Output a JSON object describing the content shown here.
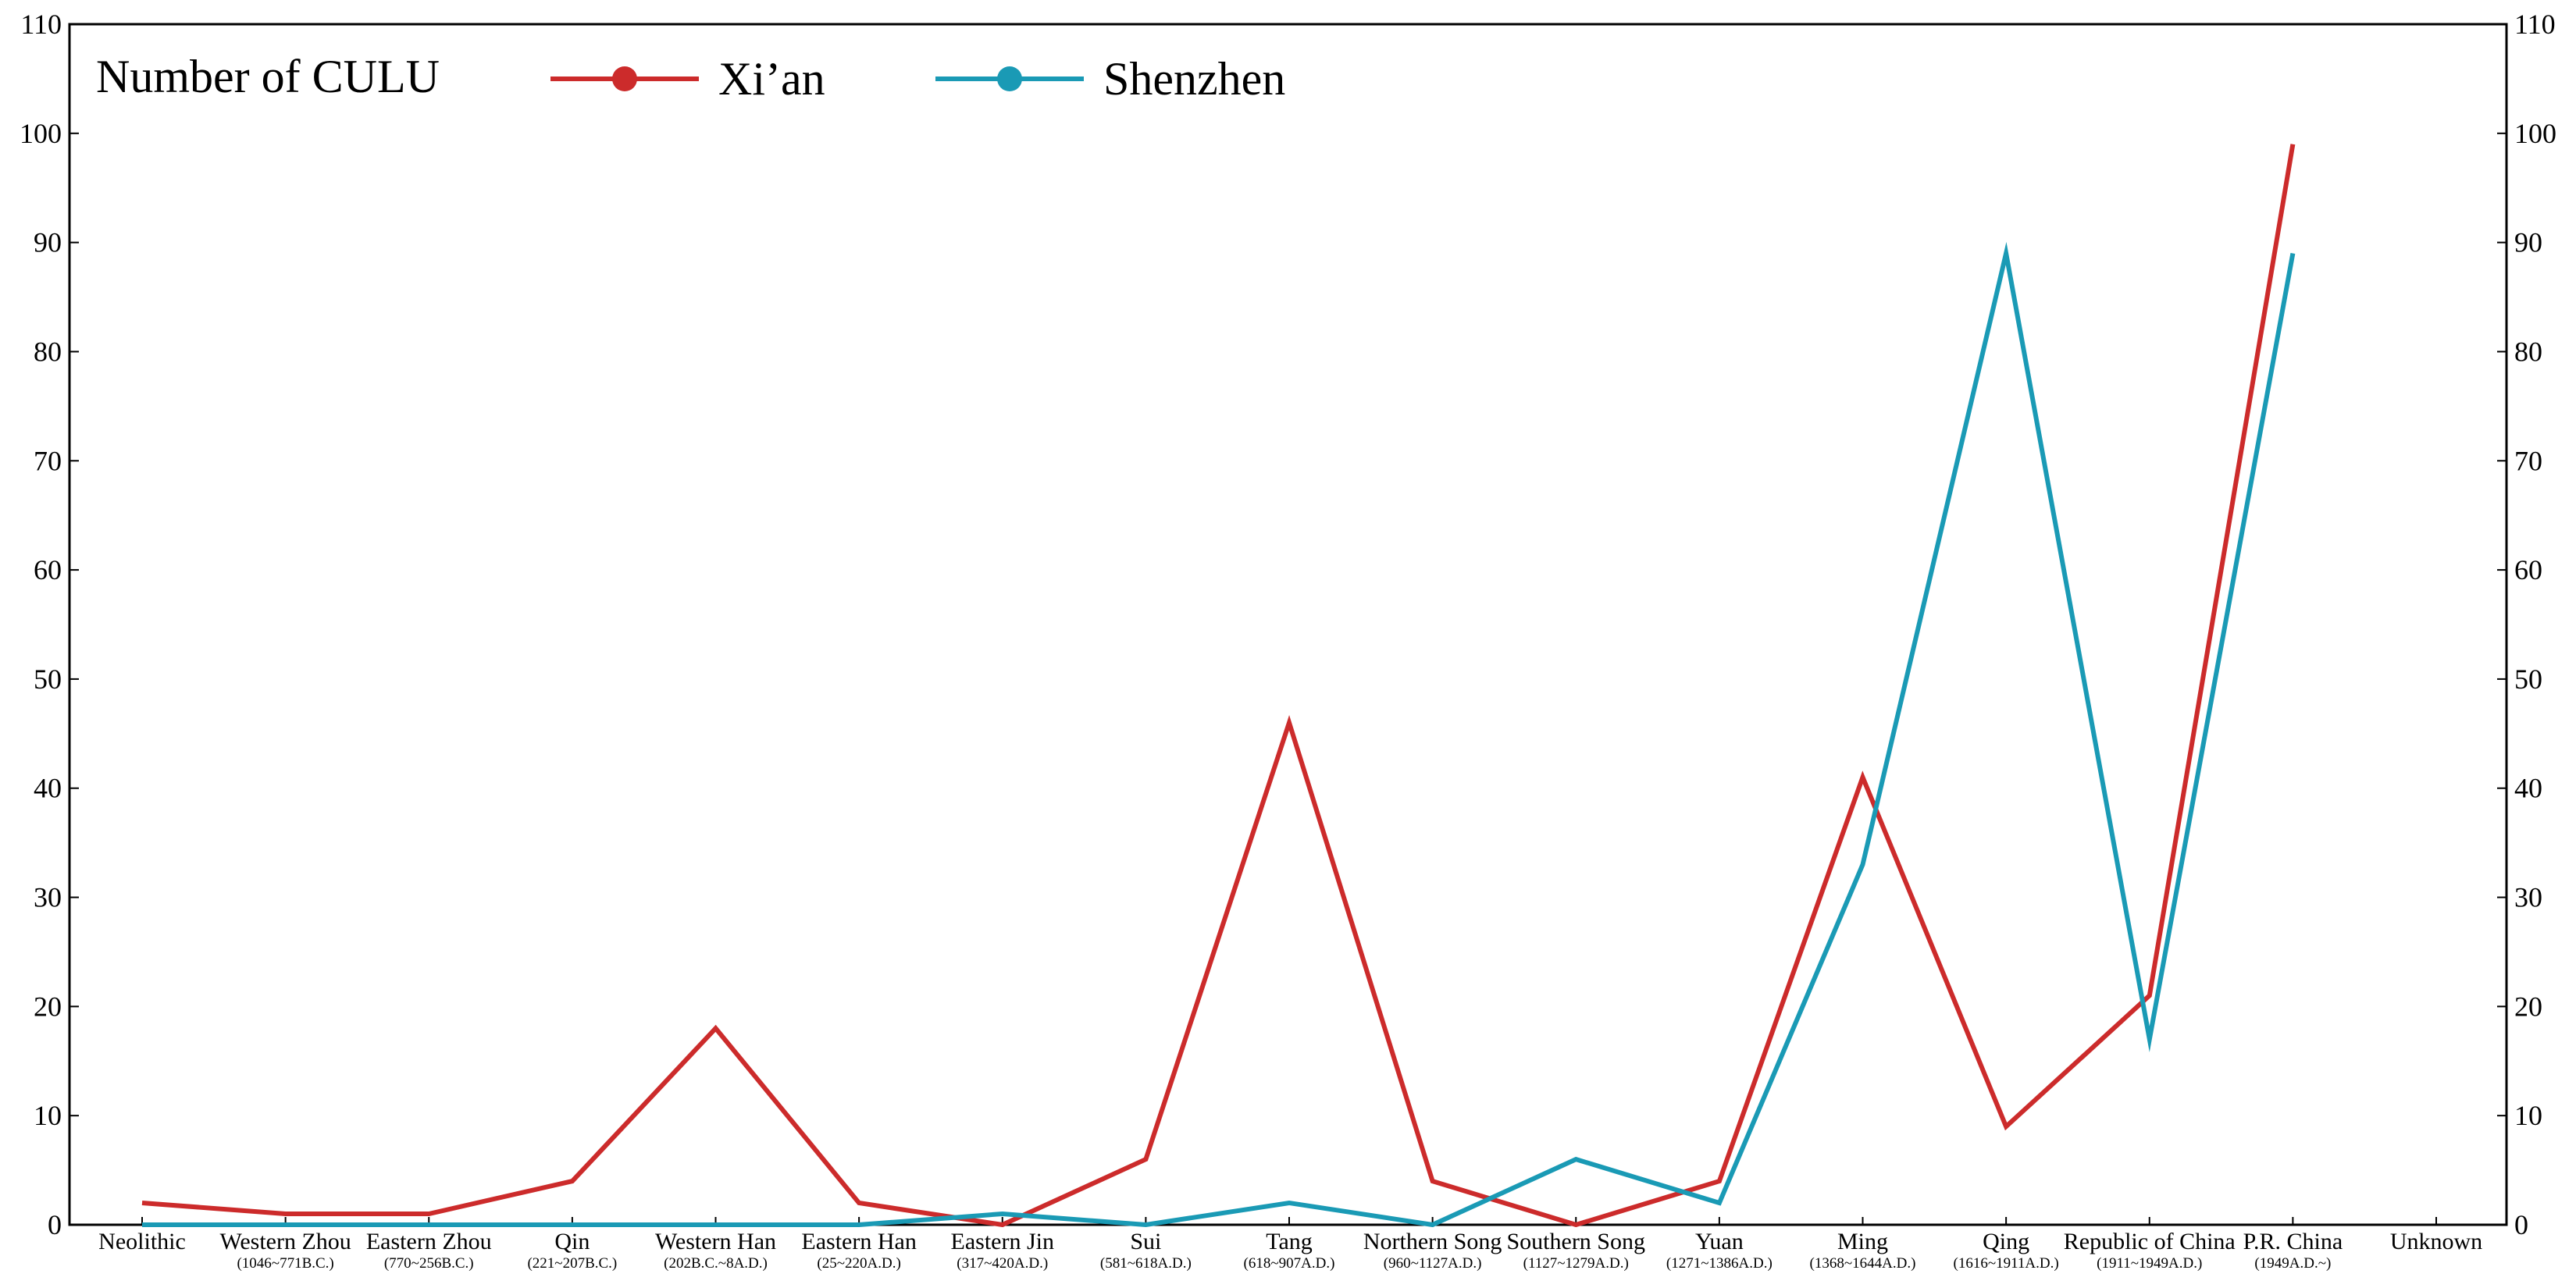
{
  "chart_data": {
    "type": "line",
    "categories": [
      {
        "name": "Neolithic",
        "period": ""
      },
      {
        "name": "Western Zhou",
        "period": "(1046~771B.C.)"
      },
      {
        "name": "Eastern Zhou",
        "period": "(770~256B.C.)"
      },
      {
        "name": "Qin",
        "period": "(221~207B.C.)"
      },
      {
        "name": "Western Han",
        "period": "(202B.C.~8A.D.)"
      },
      {
        "name": "Eastern Han",
        "period": "(25~220A.D.)"
      },
      {
        "name": "Eastern Jin",
        "period": "(317~420A.D.)"
      },
      {
        "name": "Sui",
        "period": "(581~618A.D.)"
      },
      {
        "name": "Tang",
        "period": "(618~907A.D.)"
      },
      {
        "name": "Northern Song",
        "period": "(960~1127A.D.)"
      },
      {
        "name": "Southern Song",
        "period": "(1127~1279A.D.)"
      },
      {
        "name": "Yuan",
        "period": "(1271~1386A.D.)"
      },
      {
        "name": "Ming",
        "period": "(1368~1644A.D.)"
      },
      {
        "name": "Qing",
        "period": "(1616~1911A.D.)"
      },
      {
        "name": "Republic of China",
        "period": "(1911~1949A.D.)"
      },
      {
        "name": "P.R. China",
        "period": "(1949A.D.~)"
      },
      {
        "name": "Unknown",
        "period": ""
      }
    ],
    "series": [
      {
        "name": "Xi’an",
        "color": "#cc2b2b",
        "values": [
          2,
          1,
          1,
          4,
          18,
          2,
          0,
          6,
          46,
          4,
          0,
          4,
          41,
          9,
          21,
          99,
          null
        ]
      },
      {
        "name": "Shenzhen",
        "color": "#1a9ab5",
        "values": [
          0,
          0,
          0,
          0,
          0,
          0,
          1,
          0,
          2,
          0,
          6,
          2,
          33,
          89,
          17,
          89,
          null
        ]
      }
    ],
    "legend_title": "Number of CULU",
    "legend_position": "top-left",
    "ylim": [
      0,
      110
    ],
    "yticks": [
      0,
      10,
      20,
      30,
      40,
      50,
      60,
      70,
      80,
      90,
      100,
      110
    ],
    "secondary_y_axis": true,
    "grid": false
  }
}
